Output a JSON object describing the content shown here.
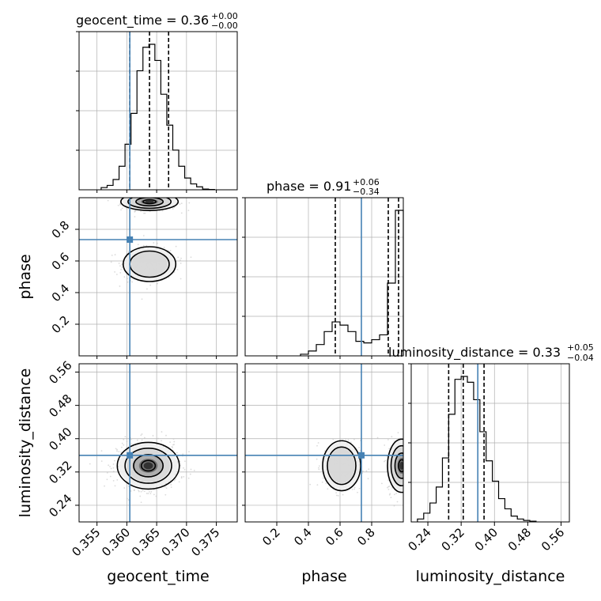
{
  "chart_data": {
    "type": "corner",
    "parameters": [
      "geocent_time",
      "phase",
      "luminosity_distance"
    ],
    "axis_labels": [
      "geocent_time",
      "phase",
      "luminosity_distance"
    ],
    "titles": [
      {
        "name": "geocent_time",
        "value": "0.36",
        "plus": "+0.00",
        "minus": "−0.00"
      },
      {
        "name": "phase",
        "value": "0.91",
        "plus": "+0.06",
        "minus": "−0.34"
      },
      {
        "name": "luminosity_distance",
        "value": "0.33",
        "plus": "+0.05",
        "minus": "−0.04"
      }
    ],
    "ranges": {
      "geocent_time": [
        0.352,
        0.3785
      ],
      "phase": [
        0.0,
        1.0
      ],
      "luminosity_distance": [
        0.2,
        0.58
      ]
    },
    "ticks": {
      "geocent_time": [
        0.355,
        0.36,
        0.365,
        0.37,
        0.375
      ],
      "phase": [
        0.2,
        0.4,
        0.6,
        0.8
      ],
      "luminosity_distance": [
        0.24,
        0.32,
        0.4,
        0.48,
        0.56
      ]
    },
    "tick_labels": {
      "geocent_time": [
        "0.355",
        "0.360",
        "0.365",
        "0.370",
        "0.375"
      ],
      "phase": [
        "0.2",
        "0.4",
        "0.6",
        "0.8"
      ],
      "luminosity_distance": [
        "0.24",
        "0.32",
        "0.40",
        "0.48",
        "0.56"
      ]
    },
    "truths": {
      "geocent_time": 0.3605,
      "phase": 0.735,
      "luminosity_distance": 0.36
    },
    "quantiles": {
      "geocent_time": [
        0.3605,
        0.3638,
        0.367
      ],
      "phase": [
        0.57,
        0.905,
        0.97
      ],
      "luminosity_distance": [
        0.29,
        0.325,
        0.375
      ]
    },
    "histograms": {
      "geocent_time": {
        "edges": [
          0.3557,
          0.3567,
          0.3577,
          0.3587,
          0.3597,
          0.3607,
          0.3617,
          0.3627,
          0.3637,
          0.3647,
          0.3657,
          0.3667,
          0.3677,
          0.3687,
          0.3697,
          0.3707,
          0.3717,
          0.3727,
          0.3737,
          0.3747
        ],
        "counts": [
          0.015,
          0.03,
          0.07,
          0.16,
          0.31,
          0.52,
          0.81,
          0.97,
          0.99,
          0.88,
          0.65,
          0.44,
          0.27,
          0.16,
          0.08,
          0.04,
          0.02,
          0.005,
          0.002
        ]
      },
      "phase": {
        "edges": [
          0.35,
          0.4,
          0.45,
          0.5,
          0.55,
          0.6,
          0.65,
          0.7,
          0.75,
          0.8,
          0.85,
          0.9,
          0.95,
          1.0
        ],
        "counts": [
          0.01,
          0.03,
          0.07,
          0.15,
          0.21,
          0.19,
          0.15,
          0.09,
          0.08,
          0.1,
          0.13,
          0.45,
          0.9
        ]
      },
      "luminosity_distance": {
        "edges": [
          0.215,
          0.23,
          0.245,
          0.26,
          0.275,
          0.29,
          0.305,
          0.32,
          0.335,
          0.35,
          0.365,
          0.38,
          0.395,
          0.41,
          0.425,
          0.44,
          0.455,
          0.47,
          0.485,
          0.5
        ],
        "counts": [
          0.02,
          0.06,
          0.13,
          0.24,
          0.44,
          0.74,
          0.98,
          1.0,
          0.96,
          0.84,
          0.62,
          0.42,
          0.28,
          0.16,
          0.09,
          0.04,
          0.02,
          0.01,
          0.005
        ]
      }
    },
    "grid": true,
    "colors": {
      "truth": "#4682b4",
      "hist": "#000000",
      "quantile": "#000000",
      "grid": "#b0b0b0",
      "scatter": "#bdbdbd"
    }
  }
}
